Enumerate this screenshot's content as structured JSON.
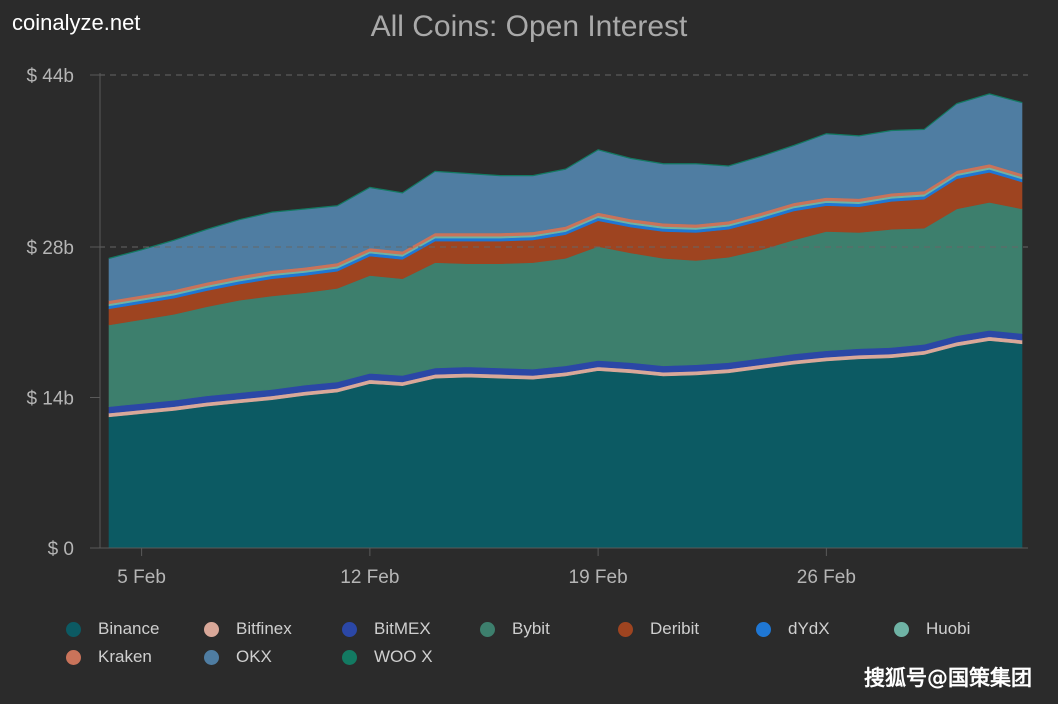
{
  "header": {
    "brand": "coinalyze.net"
  },
  "watermark": "搜狐号@国策集团",
  "chart_data": {
    "type": "area",
    "stacked": true,
    "title": "All Coins: Open Interest",
    "xlabel": "",
    "ylabel": "",
    "ylim": [
      0,
      44
    ],
    "y_ticks": [
      {
        "value": 0,
        "label": "$ 0"
      },
      {
        "value": 14,
        "label": "$ 14b"
      },
      {
        "value": 28,
        "label": "$ 28b"
      },
      {
        "value": 44,
        "label": "$ 44b"
      }
    ],
    "x_tick_labels": [
      "5 Feb",
      "12 Feb",
      "19 Feb",
      "26 Feb"
    ],
    "grid": "horizontal dashed at 28b and 44b",
    "legend_position": "bottom",
    "x": [
      "4 Feb",
      "5 Feb",
      "6 Feb",
      "7 Feb",
      "8 Feb",
      "9 Feb",
      "10 Feb",
      "11 Feb",
      "12 Feb",
      "13 Feb",
      "14 Feb",
      "15 Feb",
      "16 Feb",
      "17 Feb",
      "18 Feb",
      "19 Feb",
      "20 Feb",
      "21 Feb",
      "22 Feb",
      "23 Feb",
      "24 Feb",
      "25 Feb",
      "26 Feb",
      "27 Feb",
      "28 Feb",
      "29 Feb",
      "1 Mar",
      "2 Mar",
      "3 Mar"
    ],
    "series": [
      {
        "name": "Binance",
        "color": "#0c5a63",
        "values": [
          12.2,
          12.5,
          12.8,
          13.2,
          13.5,
          13.8,
          14.2,
          14.5,
          15.3,
          15.1,
          15.8,
          15.9,
          15.8,
          15.7,
          16.0,
          16.5,
          16.3,
          16.0,
          16.1,
          16.3,
          16.7,
          17.1,
          17.4,
          17.6,
          17.7,
          18.0,
          18.8,
          19.3,
          19.0
        ]
      },
      {
        "name": "Bitfinex",
        "color": "#d9a899",
        "values": [
          0.35,
          0.35,
          0.35,
          0.35,
          0.35,
          0.35,
          0.35,
          0.35,
          0.35,
          0.35,
          0.35,
          0.35,
          0.35,
          0.35,
          0.35,
          0.35,
          0.35,
          0.35,
          0.35,
          0.35,
          0.35,
          0.35,
          0.35,
          0.35,
          0.35,
          0.35,
          0.35,
          0.35,
          0.35
        ]
      },
      {
        "name": "BitMEX",
        "color": "#2b47a6",
        "values": [
          0.6,
          0.6,
          0.6,
          0.6,
          0.6,
          0.6,
          0.6,
          0.6,
          0.6,
          0.6,
          0.6,
          0.6,
          0.6,
          0.6,
          0.6,
          0.6,
          0.6,
          0.6,
          0.6,
          0.6,
          0.6,
          0.6,
          0.6,
          0.6,
          0.6,
          0.6,
          0.6,
          0.6,
          0.6
        ]
      },
      {
        "name": "Bybit",
        "color": "#3d7f6d",
        "values": [
          7.6,
          7.8,
          8.0,
          8.3,
          8.6,
          8.7,
          8.6,
          8.7,
          9.1,
          9.0,
          9.8,
          9.6,
          9.7,
          9.9,
          10.0,
          10.6,
          10.2,
          10.0,
          9.7,
          9.8,
          10.1,
          10.6,
          11.1,
          10.8,
          11.0,
          10.8,
          11.8,
          11.9,
          11.6
        ]
      },
      {
        "name": "Deribit",
        "color": "#9e4420",
        "values": [
          1.5,
          1.5,
          1.5,
          1.5,
          1.5,
          1.6,
          1.6,
          1.6,
          1.8,
          1.8,
          2.0,
          2.1,
          2.1,
          2.1,
          2.2,
          2.4,
          2.4,
          2.5,
          2.6,
          2.6,
          2.7,
          2.7,
          2.4,
          2.4,
          2.6,
          2.7,
          2.8,
          2.8,
          2.5
        ]
      },
      {
        "name": "dYdX",
        "color": "#1f77d4",
        "values": [
          0.28,
          0.28,
          0.28,
          0.28,
          0.28,
          0.28,
          0.28,
          0.28,
          0.28,
          0.28,
          0.28,
          0.28,
          0.28,
          0.28,
          0.28,
          0.28,
          0.28,
          0.28,
          0.28,
          0.28,
          0.28,
          0.28,
          0.28,
          0.28,
          0.28,
          0.28,
          0.28,
          0.28,
          0.28
        ]
      },
      {
        "name": "Huobi",
        "color": "#6fb3a5",
        "values": [
          0.18,
          0.18,
          0.18,
          0.18,
          0.18,
          0.18,
          0.18,
          0.18,
          0.18,
          0.18,
          0.18,
          0.18,
          0.18,
          0.18,
          0.18,
          0.18,
          0.18,
          0.18,
          0.18,
          0.18,
          0.18,
          0.18,
          0.18,
          0.18,
          0.18,
          0.18,
          0.18,
          0.18,
          0.18
        ]
      },
      {
        "name": "Kraken",
        "color": "#c9735a",
        "values": [
          0.3,
          0.3,
          0.3,
          0.3,
          0.3,
          0.3,
          0.3,
          0.3,
          0.3,
          0.3,
          0.3,
          0.3,
          0.3,
          0.3,
          0.3,
          0.3,
          0.3,
          0.3,
          0.3,
          0.3,
          0.3,
          0.3,
          0.3,
          0.3,
          0.3,
          0.3,
          0.3,
          0.3,
          0.3
        ]
      },
      {
        "name": "OKX",
        "color": "#4f7da2",
        "values": [
          3.9,
          4.2,
          4.6,
          4.9,
          5.2,
          5.4,
          5.4,
          5.3,
          5.6,
          5.4,
          5.7,
          5.5,
          5.3,
          5.2,
          5.3,
          5.8,
          5.6,
          5.5,
          5.6,
          5.1,
          5.2,
          5.3,
          5.9,
          5.8,
          5.8,
          5.7,
          6.2,
          6.5,
          6.6
        ]
      },
      {
        "name": "WOO X",
        "color": "#137a62",
        "values": [
          0.06,
          0.06,
          0.06,
          0.06,
          0.06,
          0.06,
          0.06,
          0.06,
          0.06,
          0.06,
          0.06,
          0.06,
          0.06,
          0.06,
          0.06,
          0.06,
          0.06,
          0.06,
          0.06,
          0.06,
          0.06,
          0.06,
          0.06,
          0.06,
          0.06,
          0.06,
          0.06,
          0.06,
          0.06
        ]
      }
    ]
  }
}
